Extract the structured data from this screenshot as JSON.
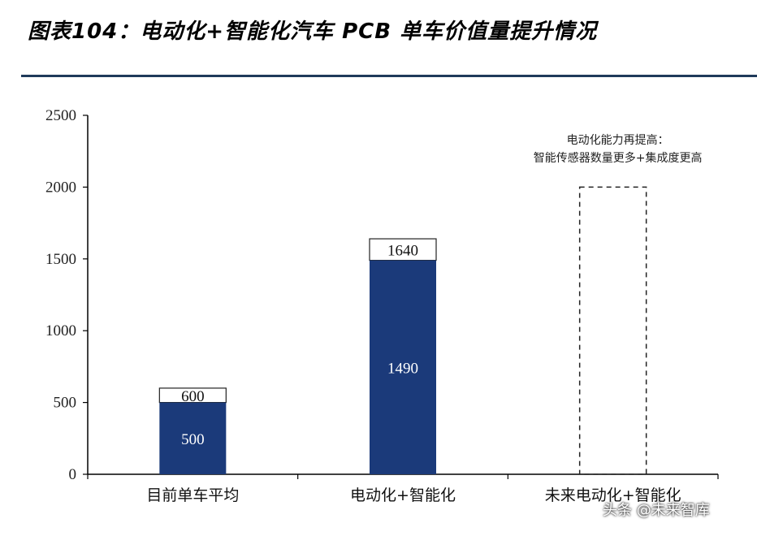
{
  "title": "图表104：电动化+智能化汽车 PCB 单车价值量提升情况",
  "colors": {
    "bar": "#1b3a7a",
    "axis": "#000000",
    "rule": "#1f3a5a"
  },
  "chart_data": {
    "type": "bar",
    "categories": [
      "目前单车平均",
      "电动化+智能化",
      "未来电动化+智能化"
    ],
    "y_ticks": [
      "0",
      "500",
      "1000",
      "1500",
      "2000",
      "2500"
    ],
    "ylim": [
      0,
      2500
    ],
    "stacks": [
      {
        "base": 500,
        "total": 600,
        "base_label": "500",
        "total_label": "600"
      },
      {
        "base": 1490,
        "total": 1640,
        "base_label": "1490",
        "total_label": "1640"
      },
      {
        "base": 0,
        "total": 2000,
        "base_label": "",
        "total_label": "",
        "dashed": true
      }
    ],
    "annotation": [
      "电动化能力再提高：",
      "智能传感器数量更多+集成度更高"
    ],
    "grid": false,
    "legend": "none"
  },
  "watermark": "头条 @未来智库"
}
